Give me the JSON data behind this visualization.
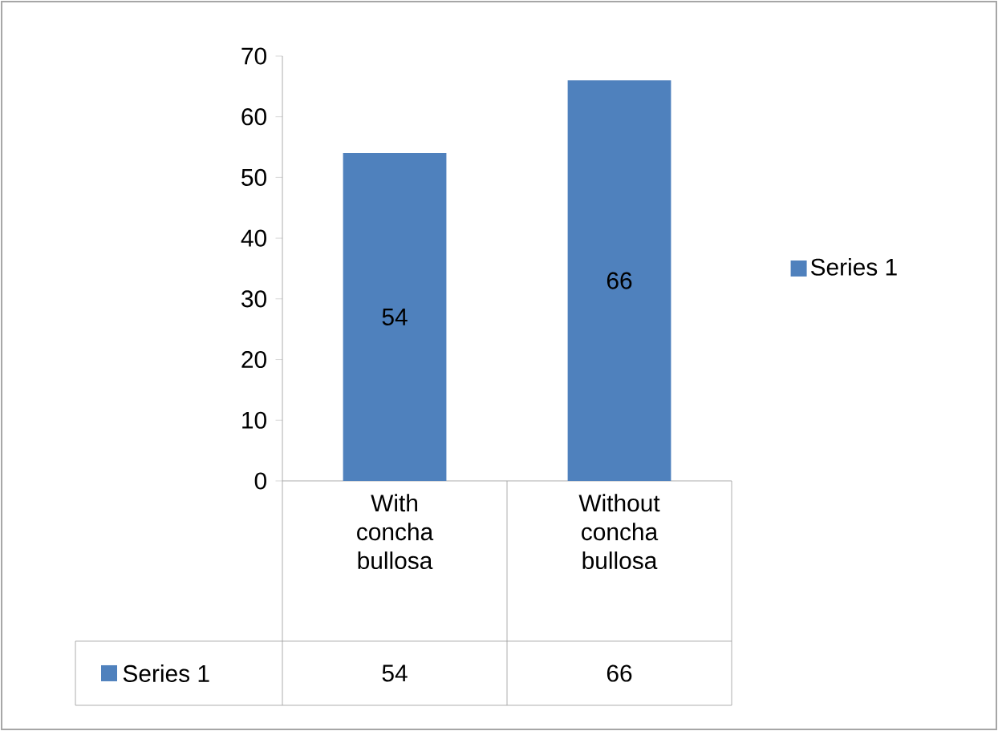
{
  "chart_data": {
    "type": "bar",
    "categories": [
      "With concha bullosa",
      "Without concha bullosa"
    ],
    "series": [
      {
        "name": "Series 1",
        "color": "#4f81bd",
        "values": [
          54,
          66
        ],
        "value_labels": [
          "54",
          "66"
        ]
      }
    ],
    "ylim": [
      0,
      70
    ],
    "yticks": [
      0,
      10,
      20,
      30,
      40,
      50,
      60,
      70
    ],
    "legend": "right"
  }
}
